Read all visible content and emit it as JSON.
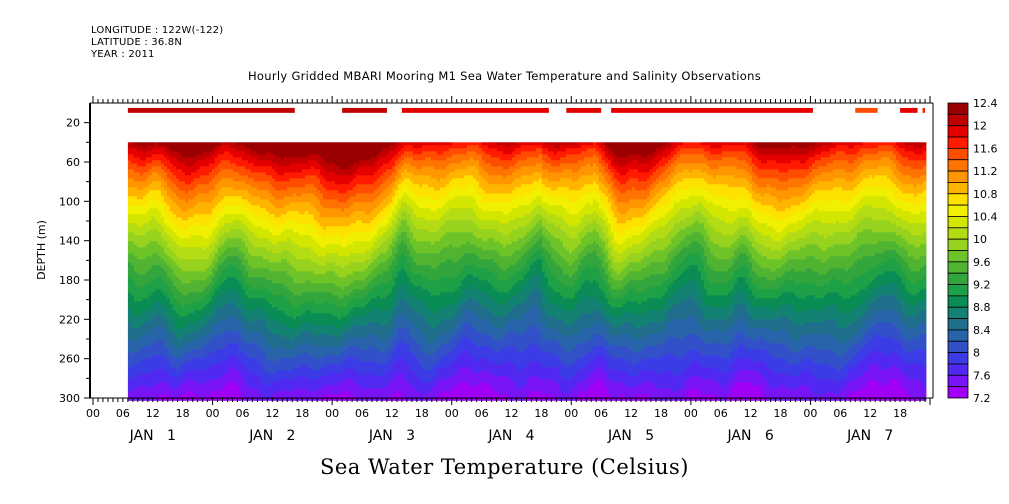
{
  "header": {
    "longitude": "LONGITUDE : 122W(-122)",
    "latitude": "LATITUDE : 36.8N",
    "year": "YEAR : 2011"
  },
  "chart_data": {
    "type": "heatmap",
    "title": "Hourly Gridded MBARI Mooring M1 Sea Water Temperature and Salinity Observations",
    "bottom_title": "Sea Water Temperature (Celsius)",
    "xlabel": "",
    "ylabel": "DEPTH (m)",
    "ylim": [
      300,
      0
    ],
    "y_inverted": true,
    "y_ticks": [
      20,
      60,
      100,
      140,
      180,
      220,
      260,
      300
    ],
    "x_range_hours": [
      0,
      168
    ],
    "x_tick_labels": [
      "00",
      "06",
      "12",
      "18",
      "00",
      "06",
      "12",
      "18",
      "00",
      "06",
      "12",
      "18",
      "00",
      "06",
      "12",
      "18",
      "00",
      "06",
      "12",
      "18",
      "00",
      "06",
      "12",
      "18",
      "00",
      "06",
      "12",
      "18"
    ],
    "day_labels": [
      {
        "label": "JAN  1",
        "center_hour": 12
      },
      {
        "label": "JAN  2",
        "center_hour": 36
      },
      {
        "label": "JAN  3",
        "center_hour": 60
      },
      {
        "label": "JAN  4",
        "center_hour": 84
      },
      {
        "label": "JAN  5",
        "center_hour": 108
      },
      {
        "label": "JAN  6",
        "center_hour": 132
      },
      {
        "label": "JAN  7",
        "center_hour": 156
      }
    ],
    "data_start_hour": 7,
    "data_end_hour": 167,
    "surface_layer_depth": [
      5,
      10
    ],
    "main_layer_depth": [
      40,
      300
    ],
    "surface_segments": [
      {
        "start_hour": 7,
        "end_hour": 40.5,
        "temp": 12.1
      },
      {
        "start_hour": 50,
        "end_hour": 59,
        "temp": 12.2
      },
      {
        "start_hour": 62,
        "end_hour": 91.5,
        "temp": 11.9
      },
      {
        "start_hour": 95,
        "end_hour": 102,
        "temp": 12.0
      },
      {
        "start_hour": 104,
        "end_hour": 144.5,
        "temp": 11.9
      },
      {
        "start_hour": 153,
        "end_hour": 157.5,
        "temp": 11.5
      },
      {
        "start_hour": 162,
        "end_hour": 165.5,
        "temp": 11.9
      },
      {
        "start_hour": 166.5,
        "end_hour": 167,
        "temp": 11.7
      }
    ],
    "profile_notes": "Temperature decreases with depth from ~12.0 C at 40 m to ~7.3 C at 300 m; warm surface pulses near Jan 1 18h, Jan 2 18h-Jan 3 00h, Jan 5 06h",
    "colorbar": {
      "min": 7.2,
      "max": 12.4,
      "step": 0.2,
      "labels": [
        "12.4",
        "12",
        "11.6",
        "11.2",
        "10.8",
        "10.4",
        "10",
        "9.6",
        "9.2",
        "8.8",
        "8.4",
        "8",
        "7.6",
        "7.2"
      ],
      "colors": [
        "#9b0000",
        "#c00000",
        "#e50000",
        "#ff1a00",
        "#ff4d00",
        "#ff7300",
        "#ff9600",
        "#ffb400",
        "#ffe100",
        "#f0f000",
        "#d2e600",
        "#b4dc14",
        "#96d21e",
        "#6ec328",
        "#50b432",
        "#32a53c",
        "#1ea046",
        "#0a8c55",
        "#148273",
        "#1e6e8c",
        "#2864aa"
      ],
      "colors_cool": [
        "#3250c8",
        "#3c3ce6",
        "#5028f0",
        "#7814f5",
        "#a000f5",
        "#c800f0"
      ]
    }
  }
}
